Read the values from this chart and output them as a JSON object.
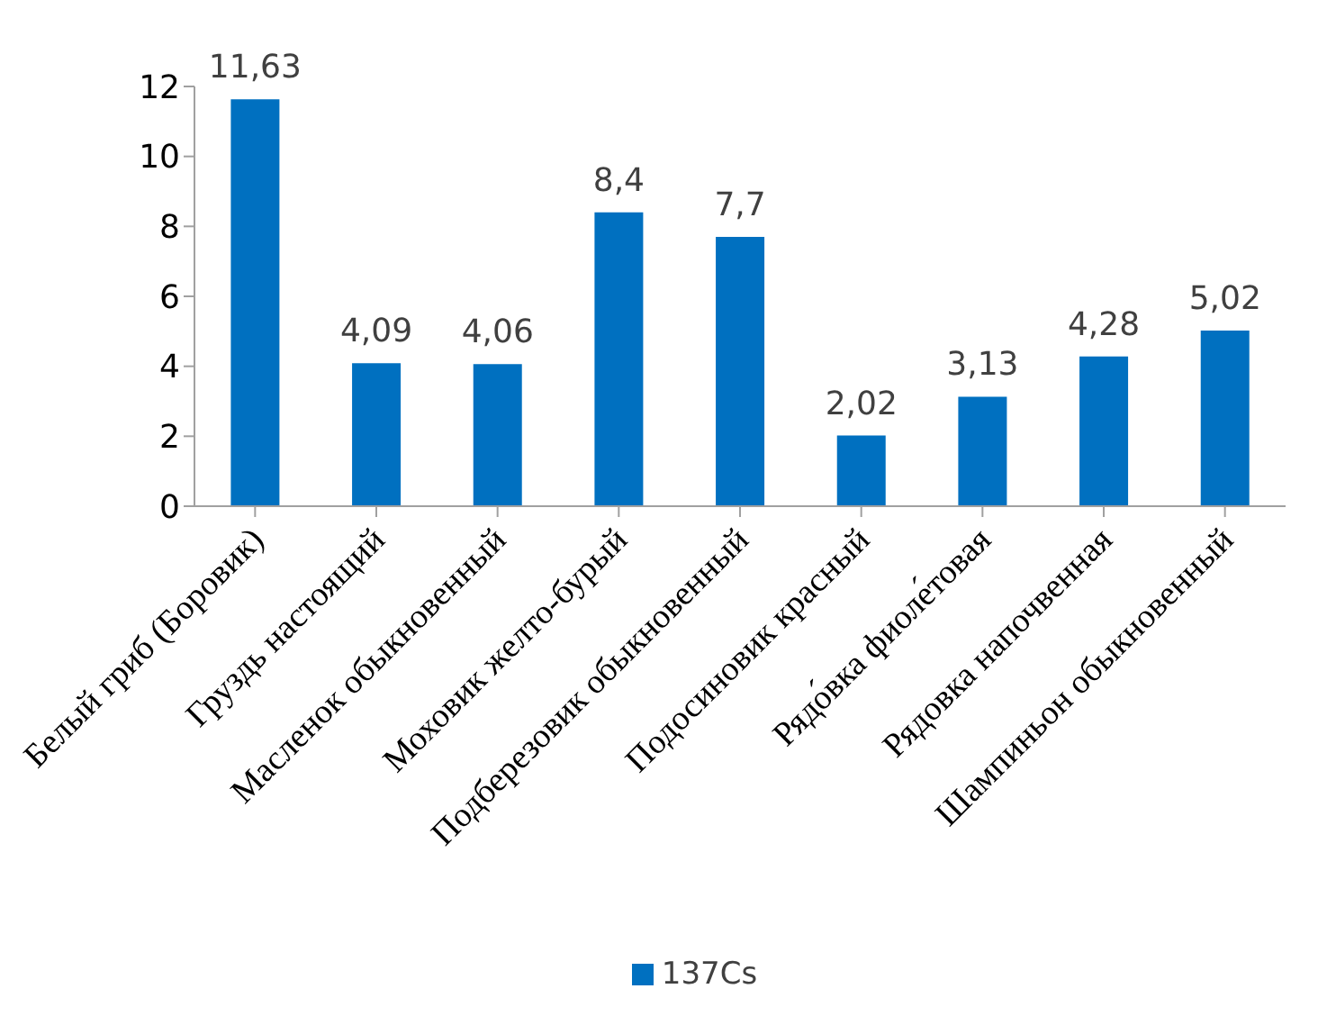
{
  "chart_data": {
    "type": "bar",
    "categories": [
      "Белый гриб (Боровик)",
      "Груздь настоящий",
      "Масленок обыкновенный",
      "Моховик желто-бурый",
      "Подберезовик обыкновенный",
      "Подосиновик красный",
      "Рядо́вка фиоле́товая",
      "Рядовка напочвенная",
      "Шампиньон обыкновенный"
    ],
    "series": [
      {
        "name": "137Cs",
        "color": "#0070c0",
        "values": [
          11.63,
          4.09,
          4.06,
          8.4,
          7.7,
          2.02,
          3.13,
          4.28,
          5.02
        ]
      }
    ],
    "value_labels": [
      "11,63",
      "4,09",
      "4,06",
      "8,4",
      "7,7",
      "2,02",
      "3,13",
      "4,28",
      "5,02"
    ],
    "ylim": [
      0,
      12
    ],
    "yticks": [
      0,
      2,
      4,
      6,
      8,
      10,
      12
    ],
    "grid": false,
    "legend": "bottom"
  }
}
